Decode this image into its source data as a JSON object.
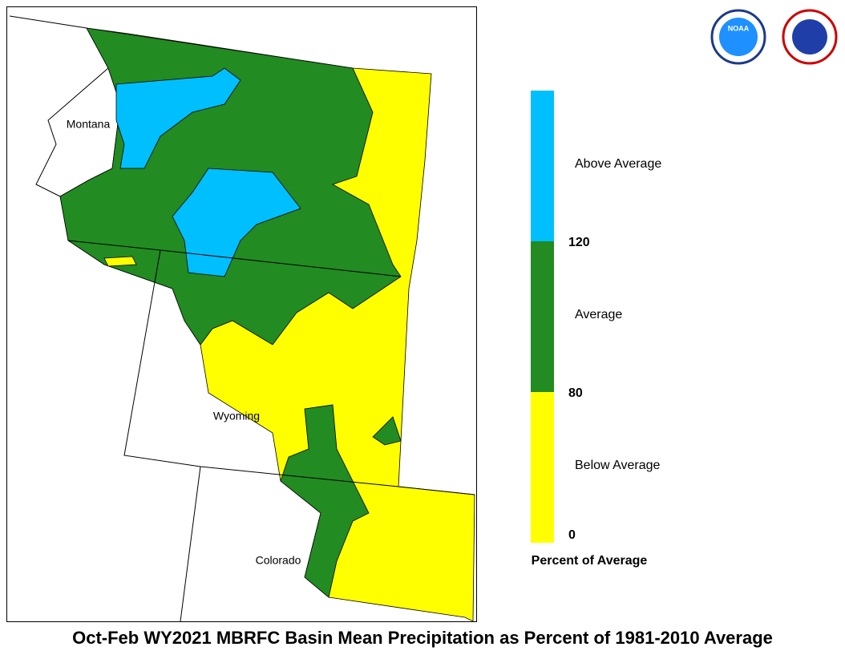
{
  "map": {
    "title": "Oct-Feb WY2021 MBRFC Basin Mean Precipitation as Percent of 1981-2010 Average",
    "state_labels": [
      "Montana",
      "Wyoming",
      "Colorado"
    ],
    "logos": [
      "NOAA"
    ],
    "legend": {
      "title": "Percent of Average",
      "ticks": [
        0,
        80,
        120
      ],
      "categories": [
        {
          "label": "Below Average",
          "color": "#ffff00"
        },
        {
          "label": "Average",
          "color": "#228b22"
        },
        {
          "label": "Above Average",
          "color": "#00bfff"
        }
      ]
    }
  }
}
